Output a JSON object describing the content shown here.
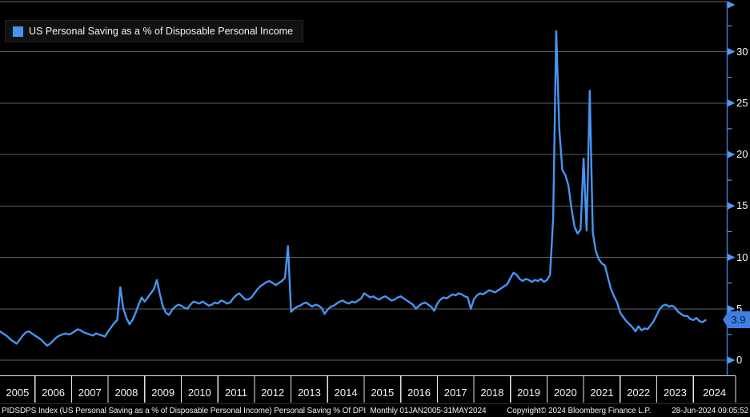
{
  "legend": {
    "label": "US Personal Saving as a % of Disposable Personal Income"
  },
  "footer": {
    "left": "PIDSDPS Index (US Personal Saving as a % of Disposable Personal Income) Personal Saving % Of DPI  Monthly 01JAN2005-31MAY2024",
    "center": "Copyright© 2024 Bloomberg Finance L.P.",
    "right": "28-Jun-2024 09:05:52"
  },
  "colors": {
    "background": "#000000",
    "line": "#4795F0",
    "swatch": "#4494F0",
    "axis": "#3A78CC",
    "tick_arrow": "#4C9BF5",
    "grid": "#5F5F5F",
    "frame": "#6E6E6E",
    "xaxis_line": "#E5E5E5",
    "label": "#F5F5F5",
    "tag_bg": "#3E7FE1",
    "tag_text": "#0A1C38"
  },
  "chart_data": {
    "type": "line",
    "title": "US Personal Saving as a % of Disposable Personal Income",
    "security": "PIDSDPS Index",
    "frequency": "monthly",
    "x_start": "2005-01",
    "x_end": "2024-05",
    "categories": [
      "2005",
      "2006",
      "2007",
      "2008",
      "2009",
      "2010",
      "2011",
      "2012",
      "2013",
      "2014",
      "2015",
      "2016",
      "2017",
      "2018",
      "2019",
      "2020",
      "2021",
      "2022",
      "2023",
      "2024"
    ],
    "yticks": [
      0,
      5,
      10,
      15,
      20,
      25,
      30
    ],
    "yticks_minor": [
      2.5,
      7.5,
      12.5,
      17.5,
      22.5,
      27.5,
      32.5
    ],
    "ylim": [
      -1.6,
      34.8
    ],
    "grid": true,
    "legend_position": "top-left",
    "axis_position": "right",
    "last_value_label": "3.9",
    "series": [
      {
        "name": "US Personal Saving as a % of Disposable Personal Income",
        "color": "#4795F0",
        "values": [
          2.9,
          2.7,
          2.5,
          2.3,
          2.0,
          1.8,
          1.6,
          2.0,
          2.4,
          2.7,
          2.8,
          2.6,
          2.4,
          2.2,
          2.0,
          1.7,
          1.4,
          1.6,
          1.9,
          2.2,
          2.4,
          2.5,
          2.6,
          2.5,
          2.6,
          2.8,
          3.0,
          2.9,
          2.7,
          2.6,
          2.5,
          2.4,
          2.6,
          2.5,
          2.4,
          2.3,
          2.8,
          3.2,
          3.6,
          3.9,
          7.1,
          5.0,
          4.1,
          3.5,
          3.9,
          4.6,
          5.4,
          6.1,
          5.7,
          6.1,
          6.5,
          6.9,
          7.8,
          6.4,
          5.2,
          4.6,
          4.4,
          4.9,
          5.2,
          5.4,
          5.3,
          5.1,
          5.0,
          5.4,
          5.7,
          5.6,
          5.5,
          5.7,
          5.5,
          5.3,
          5.4,
          5.6,
          5.5,
          5.8,
          5.7,
          5.5,
          5.6,
          6.0,
          6.3,
          6.5,
          6.2,
          5.9,
          5.9,
          6.1,
          6.5,
          6.9,
          7.2,
          7.4,
          7.6,
          7.7,
          7.5,
          7.3,
          7.5,
          7.7,
          8.0,
          11.1,
          4.7,
          5.0,
          5.2,
          5.3,
          5.5,
          5.6,
          5.4,
          5.2,
          5.4,
          5.3,
          5.1,
          4.5,
          4.9,
          5.2,
          5.3,
          5.5,
          5.7,
          5.8,
          5.6,
          5.5,
          5.7,
          5.6,
          5.8,
          6.0,
          6.5,
          6.3,
          6.1,
          6.2,
          6.0,
          5.9,
          6.1,
          6.2,
          6.0,
          5.8,
          5.9,
          6.1,
          6.2,
          6.0,
          5.8,
          5.6,
          5.4,
          5.0,
          5.3,
          5.5,
          5.6,
          5.4,
          5.2,
          4.8,
          5.5,
          5.9,
          6.1,
          6.0,
          6.2,
          6.4,
          6.3,
          6.5,
          6.4,
          6.2,
          6.1,
          5.0,
          5.9,
          6.3,
          6.5,
          6.4,
          6.6,
          6.8,
          6.7,
          6.6,
          6.8,
          7.0,
          7.2,
          7.4,
          8.0,
          8.5,
          8.3,
          7.9,
          7.7,
          7.9,
          7.8,
          7.6,
          7.8,
          7.7,
          7.9,
          7.6,
          7.8,
          8.3,
          13.8,
          32.0,
          22.5,
          18.5,
          18.0,
          17.0,
          14.8,
          13.0,
          12.3,
          12.7,
          19.6,
          12.6,
          26.2,
          12.4,
          10.6,
          9.8,
          9.4,
          9.2,
          8.0,
          6.9,
          6.2,
          5.6,
          4.6,
          4.2,
          3.8,
          3.5,
          3.2,
          2.8,
          3.3,
          2.9,
          3.1,
          3.0,
          3.4,
          3.8,
          4.4,
          5.0,
          5.3,
          5.4,
          5.2,
          5.3,
          5.1,
          4.7,
          4.5,
          4.3,
          4.3,
          4.0,
          3.9,
          4.1,
          3.8,
          3.7,
          3.9
        ]
      }
    ]
  }
}
